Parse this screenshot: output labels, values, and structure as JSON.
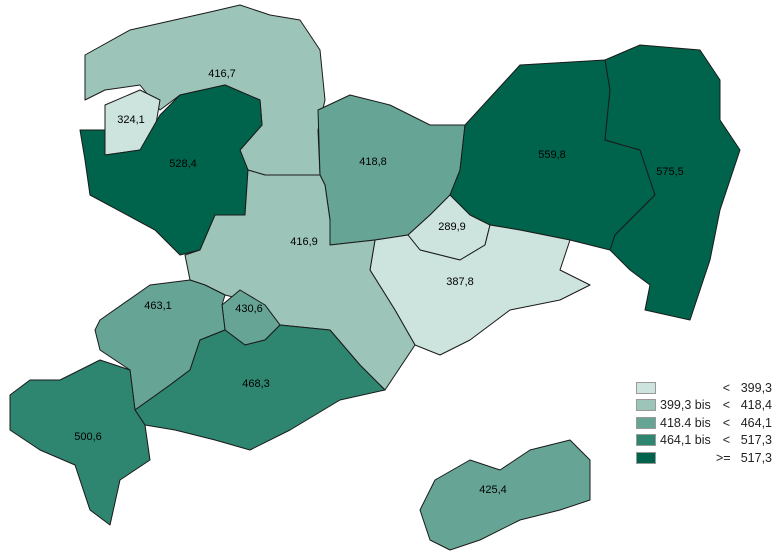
{
  "map": {
    "regions": [
      {
        "value": "416,7",
        "class": 1
      },
      {
        "value": "324,1",
        "class": 0
      },
      {
        "value": "528,4",
        "class": 4
      },
      {
        "value": "418,8",
        "class": 2
      },
      {
        "value": "559,8",
        "class": 4
      },
      {
        "value": "575,5",
        "class": 4
      },
      {
        "value": "289,9",
        "class": 0
      },
      {
        "value": "387,8",
        "class": 0
      },
      {
        "value": "416,9",
        "class": 1
      },
      {
        "value": "430,6",
        "class": 2
      },
      {
        "value": "463,1",
        "class": 2
      },
      {
        "value": "468,3",
        "class": 3
      },
      {
        "value": "500,6",
        "class": 3
      },
      {
        "value": "425,4",
        "class": 2
      }
    ]
  },
  "legend": [
    {
      "from": "",
      "op": "<",
      "to": "399,3",
      "color": "#cde3dd"
    },
    {
      "from": "399,3 bis",
      "op": "<",
      "to": "418,4",
      "color": "#9dc4b8"
    },
    {
      "from": "418.4 bis",
      "op": "<",
      "to": "464,1",
      "color": "#66a595"
    },
    {
      "from": "464,1 bis",
      "op": "<",
      "to": "517,3",
      "color": "#2e8570"
    },
    {
      "from": "",
      "op": ">=",
      "to": "517,3",
      "color": "#00644c"
    }
  ]
}
